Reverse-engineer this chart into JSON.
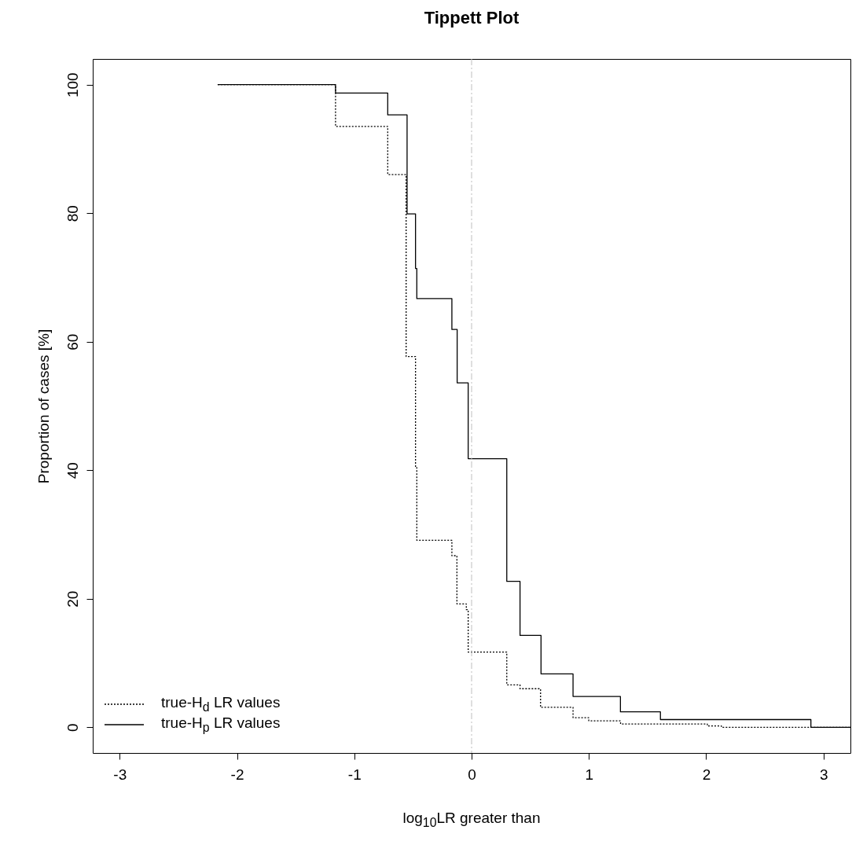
{
  "chart_data": {
    "type": "step",
    "title": "Tippett Plot",
    "xlabel": "log$_{10}$LR greater than",
    "ylabel": "Proportion of cases [%]",
    "xlim": [
      -3.23,
      3.23
    ],
    "ylim": [
      -4,
      104
    ],
    "xticks": [
      -3,
      -2,
      -1,
      0,
      1,
      2,
      3
    ],
    "yticks": [
      0,
      20,
      40,
      60,
      80,
      100
    ],
    "grid": false,
    "legend": "bottom left",
    "ref_lines": [
      {
        "axis": "x",
        "value": 0,
        "color": "#bebebe",
        "line_style": "dashed"
      }
    ],
    "series": [
      {
        "name": "true-H$_{d}$ LR values",
        "color": "#000000",
        "line_style": "dotted",
        "x": [
          -2.165,
          -1.16,
          -0.715,
          -0.558,
          -0.478,
          -0.467,
          -0.168,
          -0.125,
          -0.045,
          -0.029,
          0.3,
          0.413,
          0.588,
          0.865,
          0.999,
          1.27,
          2.01,
          2.13,
          3.23
        ],
        "values": [
          100,
          93.5,
          86,
          57.7,
          40.4,
          29.1,
          26.7,
          19.2,
          18.3,
          11.7,
          6.6,
          6,
          3.1,
          1.5,
          1,
          0.5,
          0.2,
          0,
          0
        ]
      },
      {
        "name": "true-H$_{p}$ LR values",
        "color": "#000000",
        "line_style": "solid",
        "x": [
          -2.165,
          -1.16,
          -0.715,
          -0.55,
          -0.478,
          -0.467,
          -0.168,
          -0.123,
          -0.029,
          0.3,
          0.413,
          0.592,
          0.865,
          1.269,
          1.61,
          2.893,
          3.23
        ],
        "values": [
          100,
          98.7,
          95.3,
          79.9,
          71.4,
          66.7,
          61.9,
          53.6,
          41.8,
          22.7,
          14.3,
          8.3,
          4.8,
          2.4,
          1.2,
          0,
          0
        ]
      }
    ]
  }
}
